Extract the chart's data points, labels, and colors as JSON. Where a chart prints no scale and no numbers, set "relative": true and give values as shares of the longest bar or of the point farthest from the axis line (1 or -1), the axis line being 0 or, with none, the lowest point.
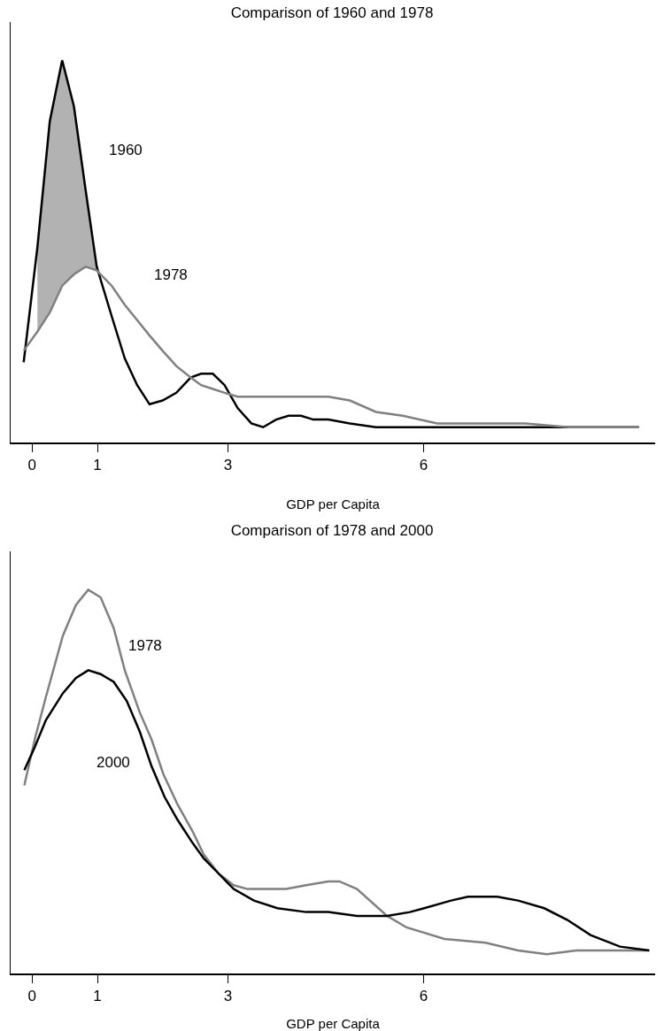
{
  "chart_data": [
    {
      "type": "line",
      "title": "Comparison of 1960 and 1978",
      "xlabel": "GDP per Capita",
      "relative": true,
      "xlim": [
        -0.33,
        9.55
      ],
      "xticks": [
        0,
        1,
        3,
        6
      ],
      "series": [
        {
          "name": "1960",
          "color": "#000000",
          "x": [
            -0.13,
            0.08,
            0.27,
            0.46,
            0.64,
            0.82,
            0.99,
            1.22,
            1.42,
            1.61,
            1.8,
            2.0,
            2.21,
            2.43,
            2.59,
            2.77,
            2.95,
            3.15,
            3.36,
            3.54,
            3.74,
            3.93,
            4.12,
            4.31,
            4.54,
            4.87,
            5.27,
            5.68,
            6.21,
            6.82,
            7.56,
            8.23,
            9.3
          ],
          "values": [
            0.21,
            0.51,
            0.84,
            1.0,
            0.88,
            0.66,
            0.46,
            0.33,
            0.22,
            0.15,
            0.1,
            0.11,
            0.13,
            0.17,
            0.18,
            0.18,
            0.15,
            0.09,
            0.05,
            0.04,
            0.06,
            0.07,
            0.07,
            0.06,
            0.06,
            0.05,
            0.04,
            0.04,
            0.04,
            0.04,
            0.04,
            0.04,
            0.04
          ],
          "lower": [
            null,
            0.29,
            0.34,
            0.41,
            0.44,
            0.46,
            0.45,
            null,
            null,
            null,
            null,
            null,
            null,
            null,
            null,
            null,
            null,
            null,
            null,
            null,
            null,
            null,
            null,
            null,
            null,
            null,
            null,
            null,
            null,
            null,
            null,
            null,
            null
          ],
          "upper": [
            null,
            0.51,
            0.84,
            1.0,
            0.88,
            0.66,
            0.46,
            null,
            null,
            null,
            null,
            null,
            null,
            null,
            null,
            null,
            null,
            null,
            null,
            null,
            null,
            null,
            null,
            null,
            null,
            null,
            null,
            null,
            null,
            null,
            null,
            null,
            null
          ]
        },
        {
          "name": "1978",
          "color": "#808080",
          "x": [
            -0.13,
            0.08,
            0.27,
            0.46,
            0.64,
            0.82,
            0.99,
            1.22,
            1.42,
            1.61,
            1.8,
            2.0,
            2.21,
            2.43,
            2.59,
            2.77,
            2.95,
            3.15,
            3.36,
            3.54,
            3.74,
            3.93,
            4.12,
            4.31,
            4.54,
            4.87,
            5.27,
            5.68,
            6.21,
            6.82,
            7.56,
            8.23,
            9.3
          ],
          "values": [
            0.24,
            0.29,
            0.34,
            0.41,
            0.44,
            0.46,
            0.45,
            0.41,
            0.36,
            0.32,
            0.28,
            0.24,
            0.2,
            0.17,
            0.15,
            0.14,
            0.13,
            0.12,
            0.12,
            0.12,
            0.12,
            0.12,
            0.12,
            0.12,
            0.12,
            0.11,
            0.08,
            0.07,
            0.05,
            0.05,
            0.05,
            0.04,
            0.04
          ]
        }
      ]
    },
    {
      "type": "line",
      "title": "Comparison of 1978 and 2000",
      "xlabel": "GDP per Capita",
      "relative": true,
      "xlim": [
        -0.33,
        9.55
      ],
      "xticks": [
        0,
        1,
        3,
        6
      ],
      "series": [
        {
          "name": "1978",
          "color": "#808080",
          "x": [
            -0.12,
            0.04,
            0.21,
            0.47,
            0.67,
            0.86,
            1.05,
            1.25,
            1.42,
            1.65,
            1.83,
            2.01,
            2.23,
            2.46,
            2.63,
            2.86,
            3.09,
            3.3,
            3.57,
            3.89,
            4.2,
            4.54,
            4.71,
            4.98,
            5.44,
            5.74,
            6.32,
            6.95,
            7.45,
            7.89,
            8.34,
            8.79,
            9.46
          ],
          "values": [
            0.49,
            0.61,
            0.72,
            0.88,
            0.96,
            1.0,
            0.98,
            0.9,
            0.79,
            0.68,
            0.61,
            0.52,
            0.44,
            0.37,
            0.31,
            0.26,
            0.23,
            0.22,
            0.22,
            0.22,
            0.23,
            0.24,
            0.24,
            0.22,
            0.15,
            0.12,
            0.09,
            0.08,
            0.06,
            0.05,
            0.06,
            0.06,
            0.06
          ]
        },
        {
          "name": "2000",
          "color": "#000000",
          "x": [
            -0.12,
            0.04,
            0.21,
            0.47,
            0.67,
            0.86,
            1.05,
            1.25,
            1.45,
            1.65,
            1.83,
            2.03,
            2.23,
            2.46,
            2.63,
            2.86,
            3.09,
            3.4,
            3.76,
            4.2,
            4.54,
            4.98,
            5.44,
            5.79,
            6.01,
            6.42,
            6.68,
            7.13,
            7.45,
            7.85,
            8.2,
            8.56,
            9.01,
            9.46
          ],
          "values": [
            0.53,
            0.59,
            0.66,
            0.73,
            0.77,
            0.79,
            0.78,
            0.76,
            0.71,
            0.63,
            0.54,
            0.46,
            0.4,
            0.34,
            0.3,
            0.26,
            0.22,
            0.19,
            0.17,
            0.16,
            0.16,
            0.15,
            0.15,
            0.16,
            0.17,
            0.19,
            0.2,
            0.2,
            0.19,
            0.17,
            0.14,
            0.1,
            0.07,
            0.06
          ]
        }
      ]
    }
  ]
}
